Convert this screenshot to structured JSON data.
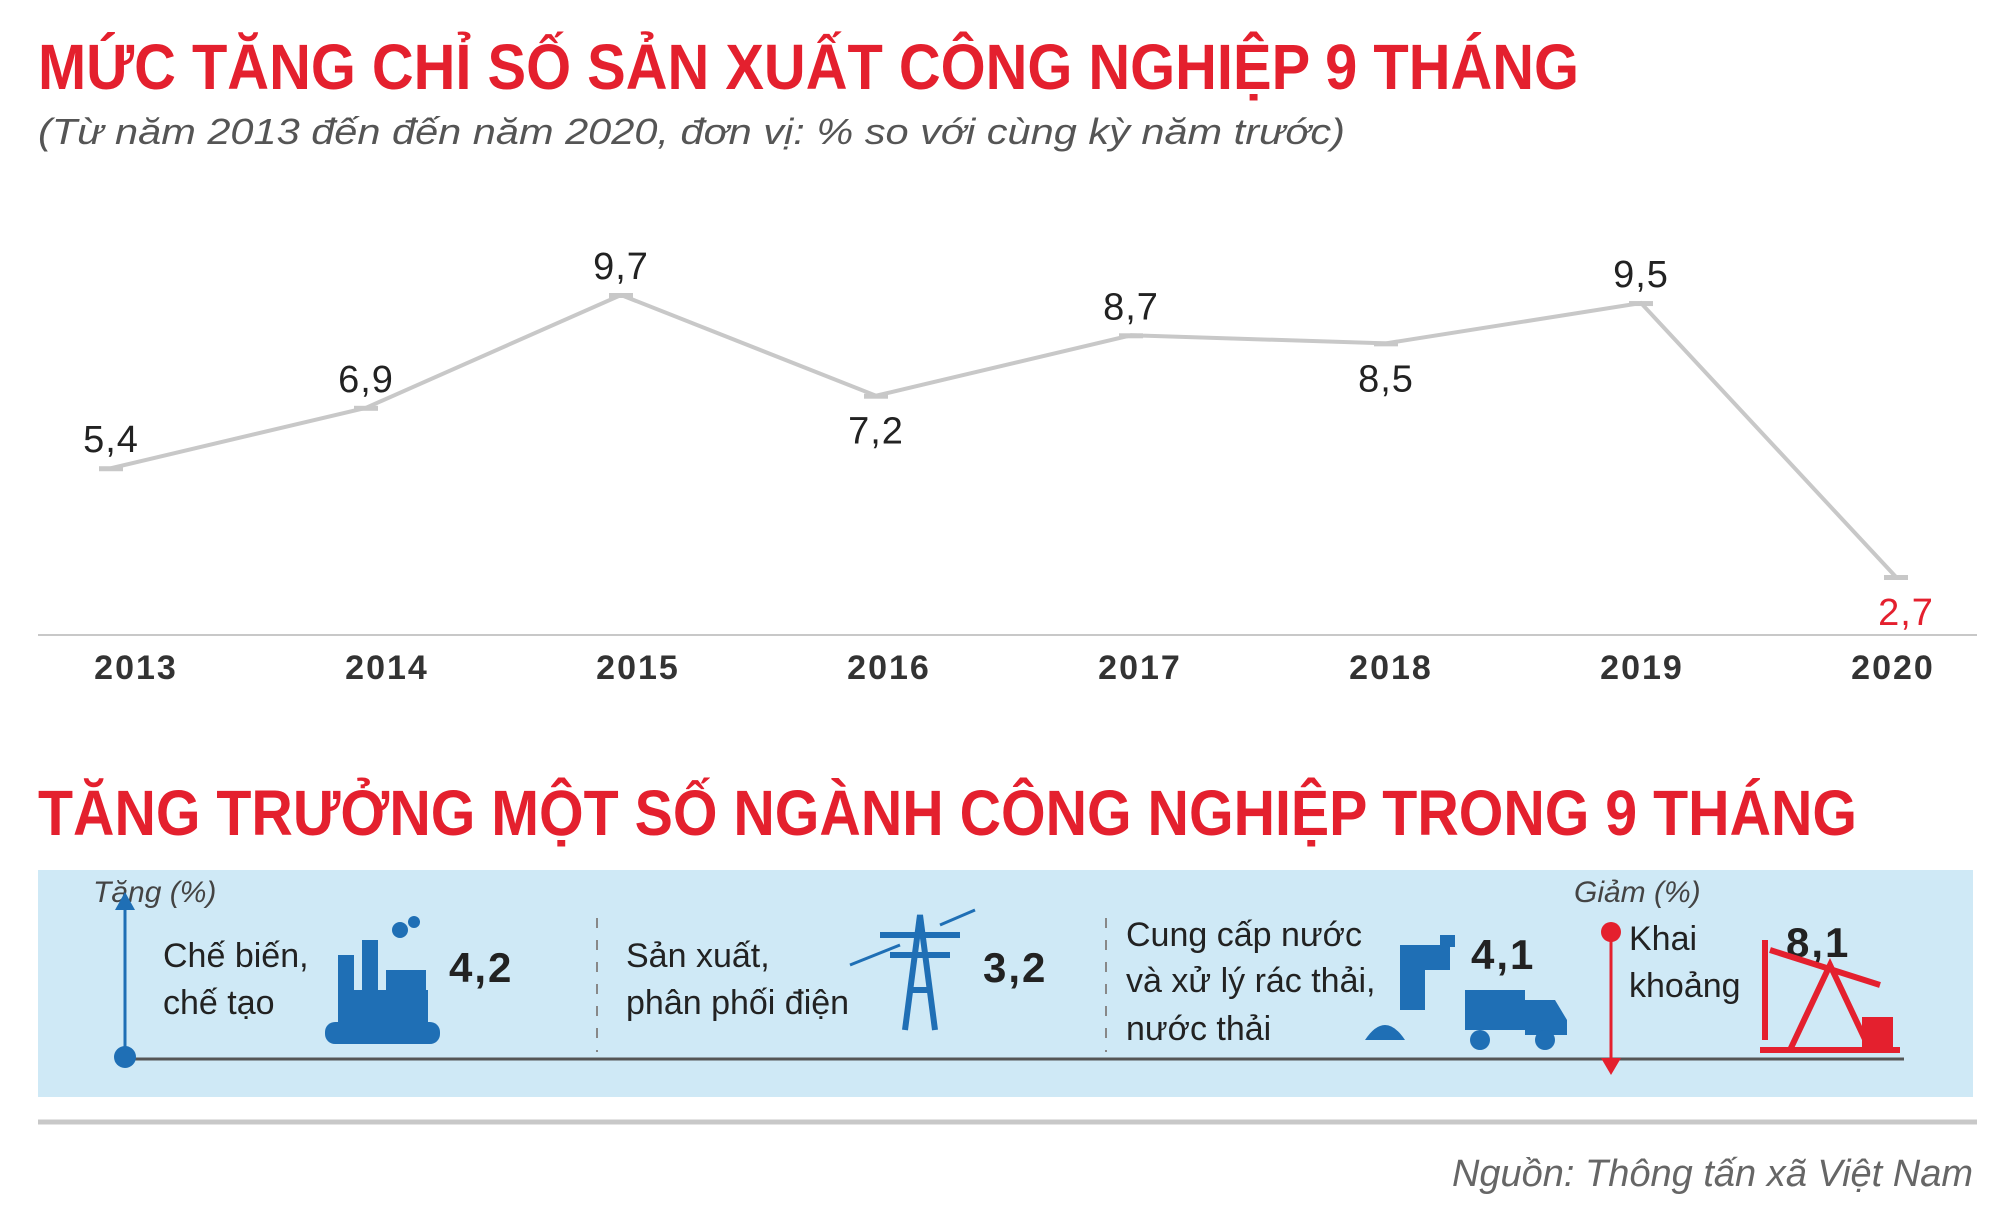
{
  "chart_data": {
    "type": "line",
    "title": "MỨC TĂNG CHỈ SỐ SẢN XUẤT CÔNG NGHIỆP 9 THÁNG",
    "subtitle": "(Từ năm 2013 đến đến năm 2020, đơn vị: % so với cùng kỳ năm trước)",
    "categories": [
      "2013",
      "2014",
      "2015",
      "2016",
      "2017",
      "2018",
      "2019",
      "2020"
    ],
    "values": [
      5.4,
      6.9,
      9.7,
      7.2,
      8.7,
      8.5,
      9.5,
      2.7
    ],
    "value_labels": [
      "5,4",
      "6,9",
      "9,7",
      "7,2",
      "8,7",
      "8,5",
      "9,5",
      "2,7"
    ],
    "value_label_colors": [
      "#222222",
      "#222222",
      "#222222",
      "#222222",
      "#222222",
      "#222222",
      "#222222",
      "#e4202e"
    ],
    "color": "#c8c8c8"
  },
  "sectors": {
    "title": "TĂNG TRƯỞNG MỘT SỐ NGÀNH CÔNG NGHIỆP TRONG 9 THÁNG",
    "increase_label": "Tăng (%)",
    "decrease_label": "Giảm (%)",
    "items": [
      {
        "label_lines": [
          "Chế biến,",
          "chế tạo"
        ],
        "value": "4,2"
      },
      {
        "label_lines": [
          "Sản xuất,",
          "phân phối điện"
        ],
        "value": "3,2"
      },
      {
        "label_lines": [
          "Cung cấp nước",
          "và xử lý rác thải,",
          "nước thải"
        ],
        "value": "4,1"
      },
      {
        "label_lines": [
          "Khai",
          "khoảng"
        ],
        "value": "8,1"
      }
    ]
  },
  "source": "Nguồn: Thông tấn xã Việt Nam"
}
